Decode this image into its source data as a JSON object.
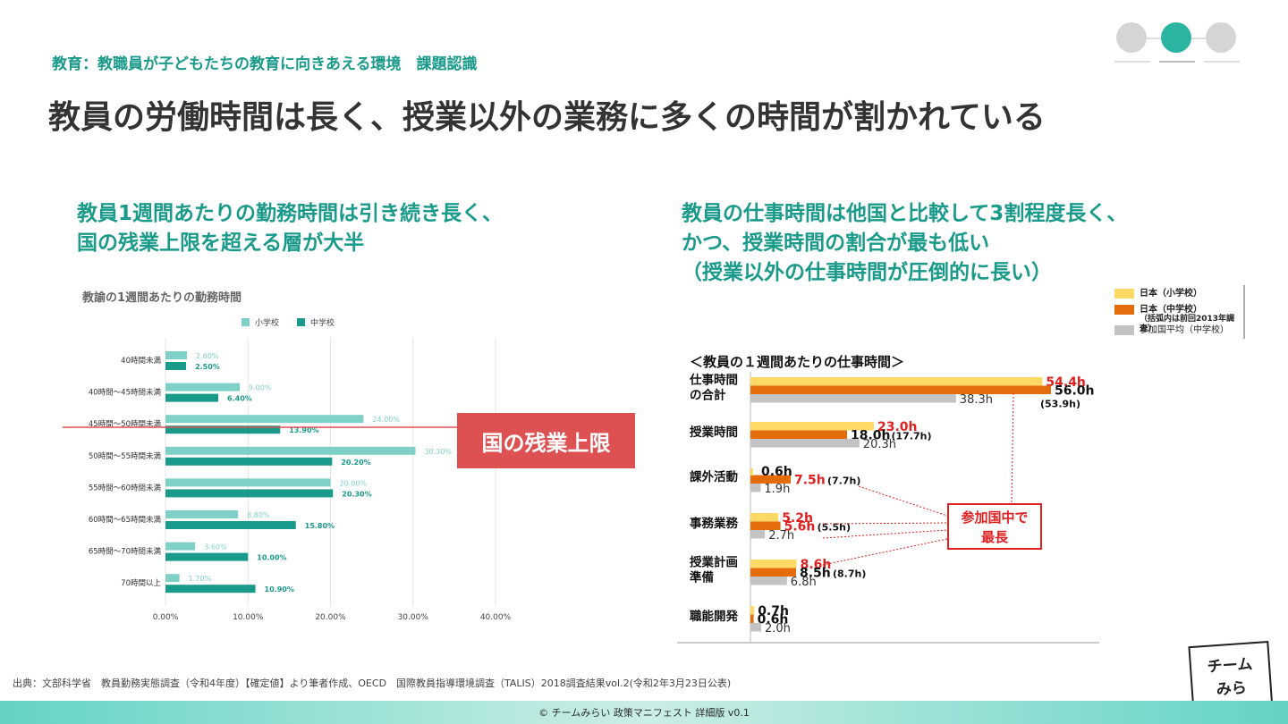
{
  "header": {
    "breadcrumb": "教育：教職員が子どもたちの教育に向きあえる環境　課題認識",
    "title": "教員の労働時間は長く、授業以外の業務に多くの時間が割かれている"
  },
  "left_section": {
    "heading_line1": "教員1週間あたりの勤務時間は引き続き長く、",
    "heading_line2": "国の残業上限を超える層が大半",
    "limit_label": "国の残業上限"
  },
  "right_section": {
    "heading_line1": "教員の仕事時間は他国と比較して3割程度長く、",
    "heading_line2": "かつ、授業時間の割合が最も低い",
    "heading_line3": "（授業以外の仕事時間が圧倒的に長い）",
    "legend": {
      "item1": "日本（小学校）",
      "item2_line1": "日本（中学校）",
      "item2_line2": "（括弧内は前回2013年調査）",
      "item3": "参加国平均（中学校）"
    },
    "callout_line1": "参加国中で",
    "callout_line2": "最長"
  },
  "colors": {
    "accent": "#1a9a8a",
    "elementary": "#7fd1c7",
    "junior_high": "#1a9a8a",
    "limit": "#dd5152",
    "jp_elementary": "#ffd966",
    "jp_junior_high": "#e46c0a",
    "avg": "#c3c3c3",
    "highlight": "#e02020"
  },
  "chart_data": [
    {
      "type": "bar",
      "orientation": "horizontal",
      "title": "教諭の1週間あたりの勤務時間",
      "categories": [
        "40時間未満",
        "40時間～45時間未満",
        "45時間～50時間未満",
        "50時間～55時間未満",
        "55時間～60時間未満",
        "60時間～65時間未満",
        "65時間～70時間未満",
        "70時間以上"
      ],
      "series": [
        {
          "name": "小学校",
          "values": [
            2.6,
            9.0,
            24.0,
            30.3,
            20.0,
            8.8,
            3.6,
            1.7
          ],
          "labels": [
            "2.60%",
            "9.00%",
            "24.00%",
            "30.30%",
            "20.00%",
            "8.80%",
            "3.60%",
            "1.70%"
          ]
        },
        {
          "name": "中学校",
          "values": [
            2.5,
            6.4,
            13.9,
            20.2,
            20.3,
            15.8,
            10.0,
            10.9
          ],
          "labels": [
            "2.50%",
            "6.40%",
            "13.90%",
            "20.20%",
            "20.30%",
            "15.80%",
            "10.00%",
            "10.90%"
          ]
        }
      ],
      "x_ticks": [
        "0.00%",
        "10.00%",
        "20.00%",
        "30.00%",
        "40.00%"
      ],
      "xlim": [
        0,
        40
      ],
      "grid": true,
      "legend": "top"
    },
    {
      "type": "bar",
      "orientation": "horizontal",
      "title": "＜教員の１週間あたりの仕事時間＞",
      "categories": [
        "仕事時間\nの合計",
        "授業時間",
        "課外活動",
        "事務業務",
        "授業計画\n準備",
        "職能開発"
      ],
      "series": [
        {
          "name": "日本（小学校）",
          "values": [
            54.4,
            23.0,
            null,
            5.2,
            8.6,
            0.7
          ],
          "labels": [
            "54.4h",
            "23.0h",
            "",
            "5.2h",
            "8.6h",
            "0.7h"
          ]
        },
        {
          "name": "日本（中学校）",
          "values": [
            56.0,
            18.0,
            7.5,
            5.6,
            8.5,
            0.6
          ],
          "labels": [
            "56.0h",
            "18.0h",
            "7.5h",
            "5.6h",
            "8.5h",
            "0.6h"
          ],
          "previous_2013": [
            "(53.9h)",
            "(17.7h)",
            "(7.7h)",
            "(5.5h)",
            "(8.7h)",
            ""
          ]
        },
        {
          "name": "参加国平均（中学校）",
          "values": [
            38.3,
            20.3,
            1.9,
            2.7,
            6.8,
            2.0
          ],
          "labels": [
            "38.3h",
            "20.3h",
            "1.9h",
            "2.7h",
            "6.8h",
            "2.0h"
          ]
        }
      ],
      "extra_labels": [
        "0.6h"
      ],
      "legend": "top-right"
    }
  ],
  "footer": {
    "source": "出典：文部科学省　教員勤務実態調査（令和4年度）【確定値】より筆者作成、OECD　国際教員指導環境調査（TALIS）2018調査結果vol.2(令和2年3月23日公表)",
    "copyright": "© チームみらい 政策マニフェスト 詳細版 v0.1",
    "logo_line1": "チーム",
    "logo_line2": "みらい"
  }
}
